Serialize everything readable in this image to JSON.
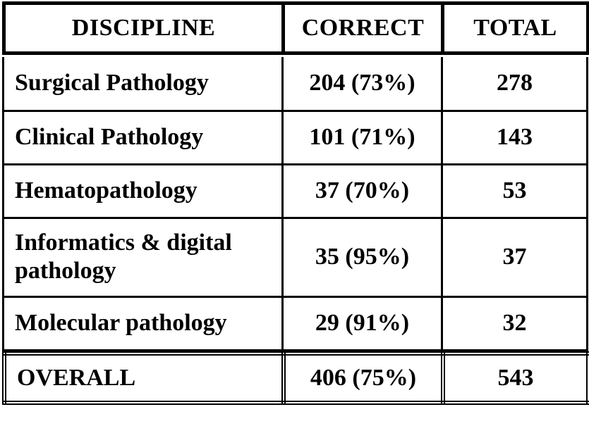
{
  "table": {
    "headers": {
      "discipline": "DISCIPLINE",
      "correct": "CORRECT",
      "total": "TOTAL"
    },
    "rows": [
      {
        "discipline": "Surgical Pathology",
        "correct": "204 (73%)",
        "total": "278"
      },
      {
        "discipline": "Clinical Pathology",
        "correct": "101 (71%)",
        "total": "143"
      },
      {
        "discipline": "Hematopathology",
        "correct": "37 (70%)",
        "total": "53"
      },
      {
        "discipline": "Informatics & digital pathology",
        "correct": "35 (95%)",
        "total": "37"
      },
      {
        "discipline": "Molecular pathology",
        "correct": "29 (91%)",
        "total": "32"
      }
    ],
    "overall": {
      "discipline": "OVERALL",
      "correct": "406 (75%)",
      "total": "543"
    }
  },
  "chart_data": {
    "type": "table",
    "columns": [
      "DISCIPLINE",
      "CORRECT",
      "TOTAL"
    ],
    "rows": [
      [
        "Surgical Pathology",
        "204 (73%)",
        "278"
      ],
      [
        "Clinical Pathology",
        "101 (71%)",
        "143"
      ],
      [
        "Hematopathology",
        "37 (70%)",
        "53"
      ],
      [
        "Informatics & digital pathology",
        "35 (95%)",
        "37"
      ],
      [
        "Molecular pathology",
        "29 (91%)",
        "32"
      ],
      [
        "OVERALL",
        "406 (75%)",
        "543"
      ]
    ],
    "numeric": {
      "categories": [
        "Surgical Pathology",
        "Clinical Pathology",
        "Hematopathology",
        "Informatics & digital pathology",
        "Molecular pathology",
        "OVERALL"
      ],
      "correct_count": [
        204,
        101,
        37,
        35,
        29,
        406
      ],
      "correct_percent": [
        73,
        71,
        70,
        95,
        91,
        75
      ],
      "total_count": [
        278,
        143,
        53,
        37,
        32,
        543
      ]
    }
  },
  "colors": {
    "border": "#000000",
    "text": "#000000",
    "background": "#ffffff"
  }
}
